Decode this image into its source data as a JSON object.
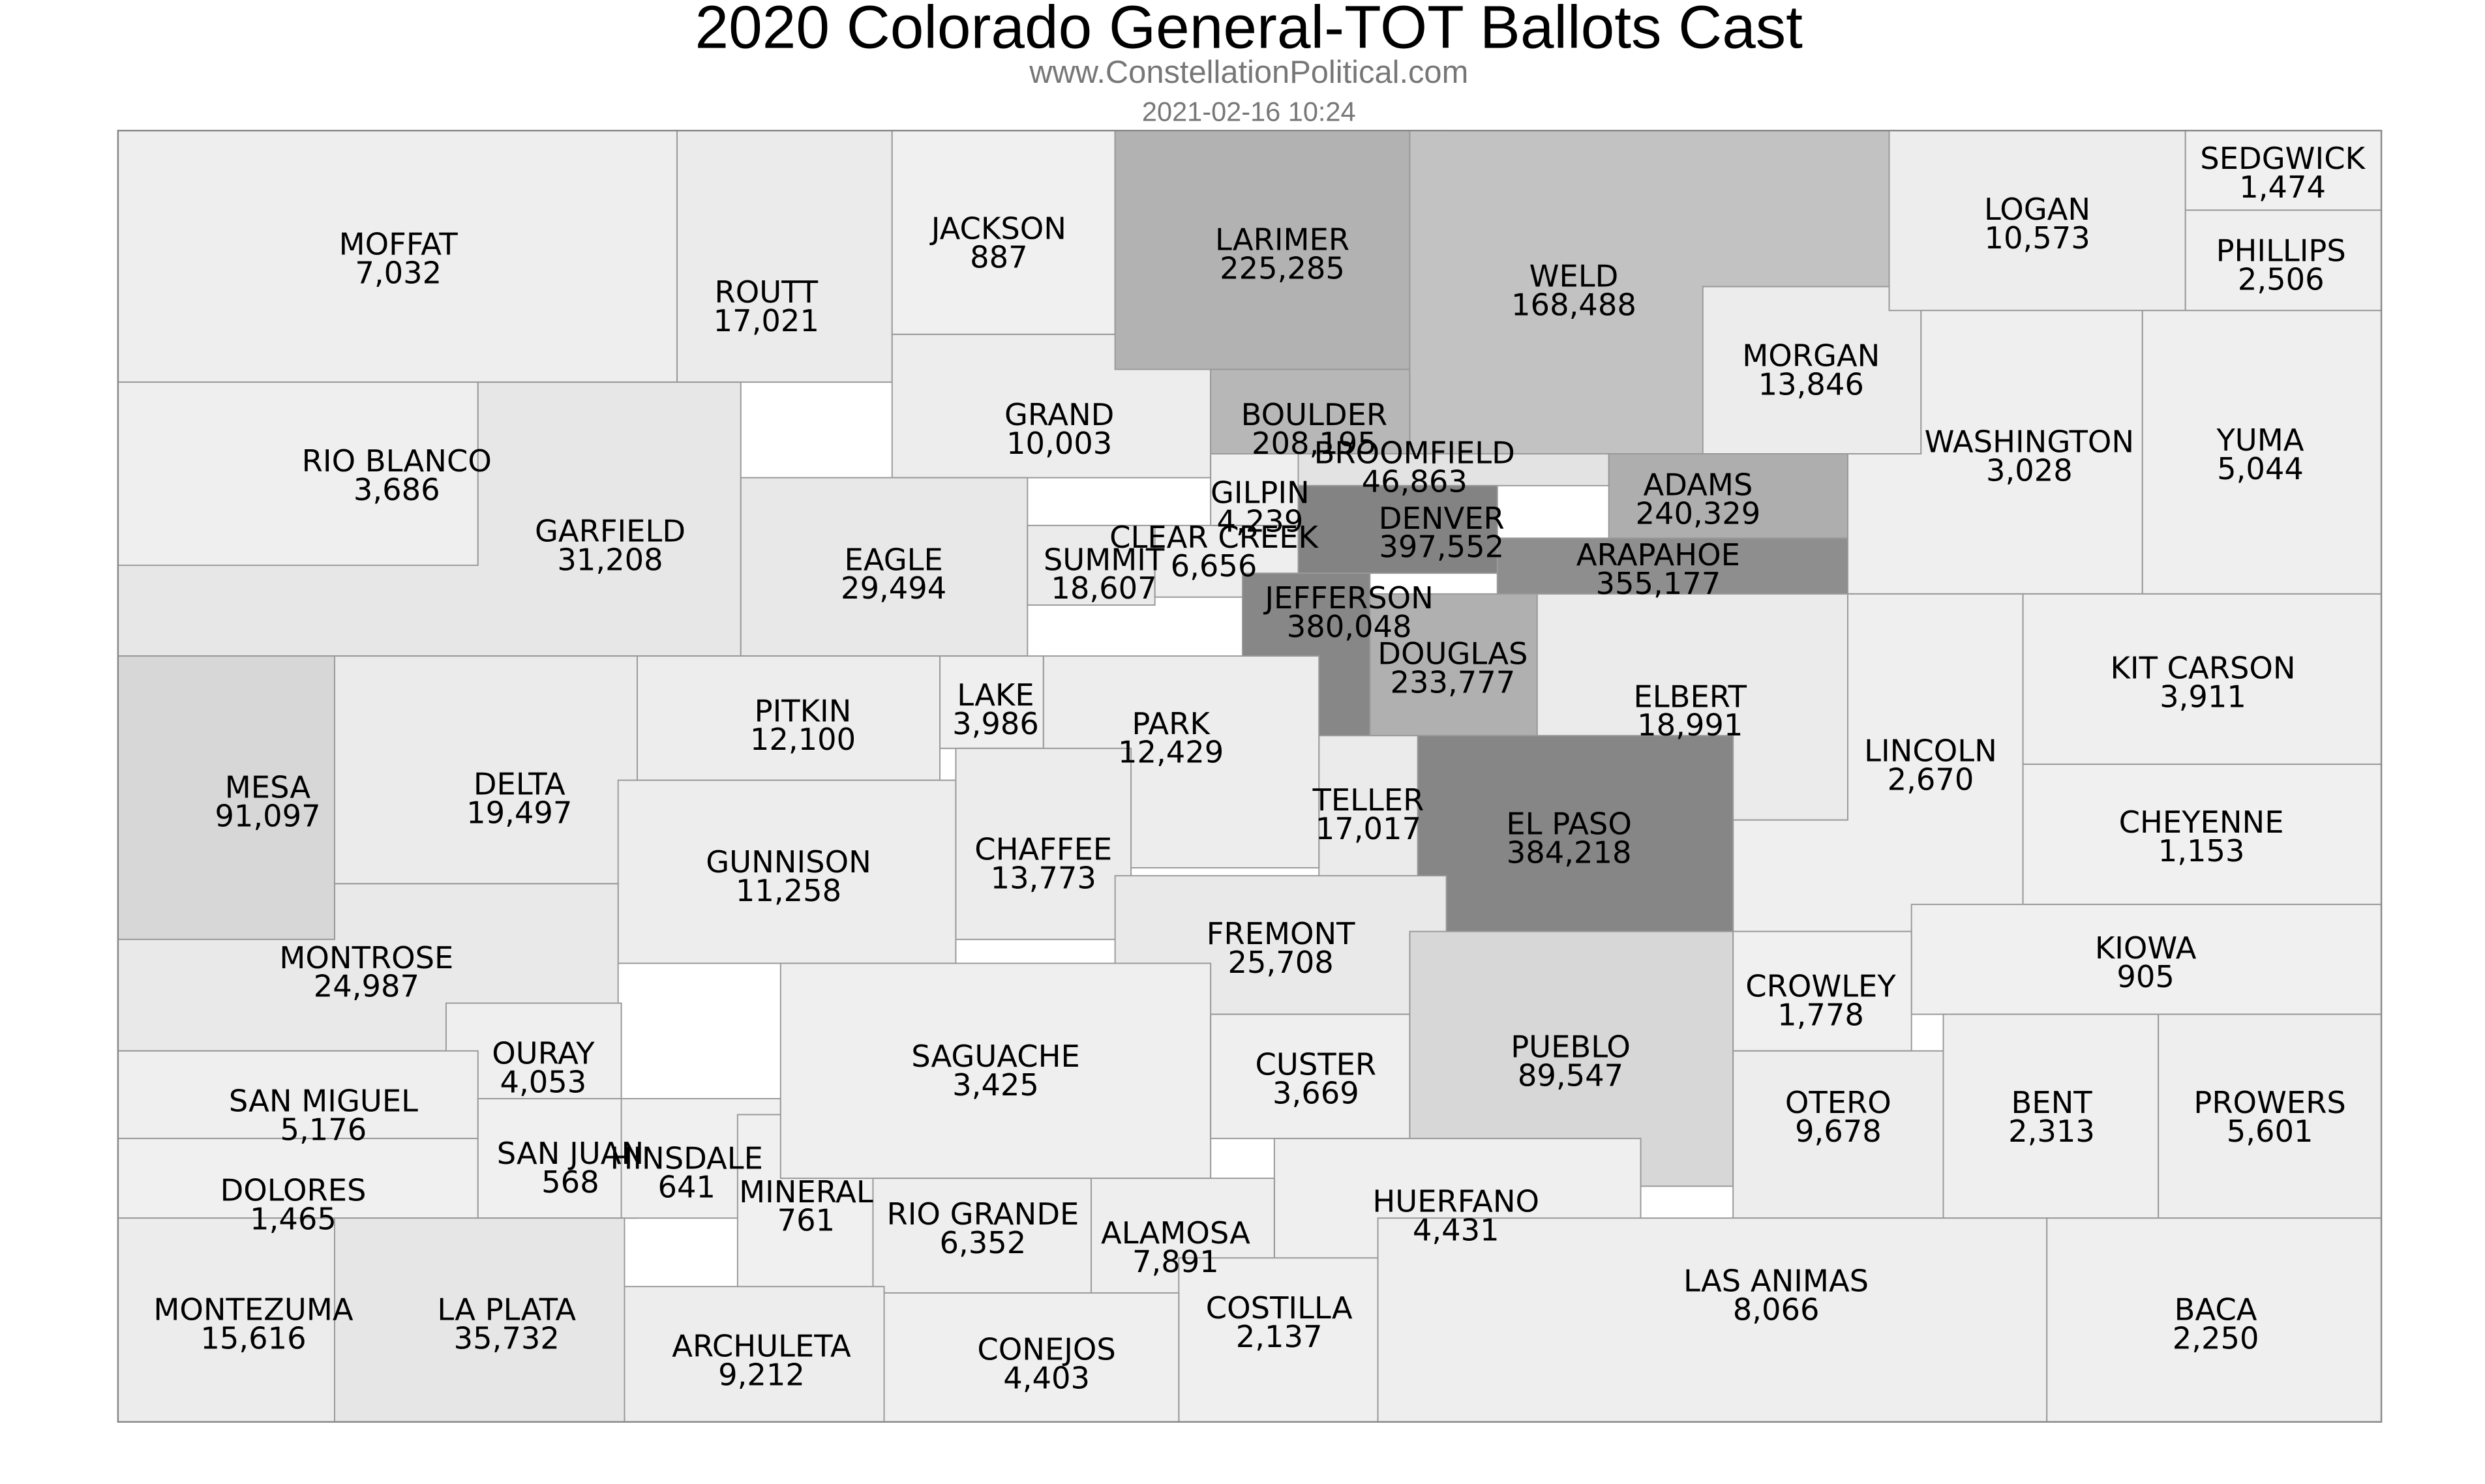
{
  "header": {
    "title": "2020 Colorado General-TOT Ballots Cast",
    "source": "www.ConstellationPolitical.com",
    "timestamp": "2021-02-16 10:24"
  },
  "counties": [
    {
      "name": "MOFFAT",
      "value": 7032,
      "label": "7,032"
    },
    {
      "name": "ROUTT",
      "value": 17021,
      "label": "17,021"
    },
    {
      "name": "JACKSON",
      "value": 887,
      "label": "887"
    },
    {
      "name": "GRAND",
      "value": 10003,
      "label": "10,003"
    },
    {
      "name": "LARIMER",
      "value": 225285,
      "label": "225,285"
    },
    {
      "name": "WELD",
      "value": 168488,
      "label": "168,488"
    },
    {
      "name": "MORGAN",
      "value": 13846,
      "label": "13,846"
    },
    {
      "name": "LOGAN",
      "value": 10573,
      "label": "10,573"
    },
    {
      "name": "SEDGWICK",
      "value": 1474,
      "label": "1,474"
    },
    {
      "name": "PHILLIPS",
      "value": 2506,
      "label": "2,506"
    },
    {
      "name": "WASHINGTON",
      "value": 3028,
      "label": "3,028"
    },
    {
      "name": "YUMA",
      "value": 5044,
      "label": "5,044"
    },
    {
      "name": "RIO BLANCO",
      "value": 3686,
      "label": "3,686"
    },
    {
      "name": "GARFIELD",
      "value": 31208,
      "label": "31,208"
    },
    {
      "name": "EAGLE",
      "value": 29494,
      "label": "29,494"
    },
    {
      "name": "SUMMIT",
      "value": 18607,
      "label": "18,607"
    },
    {
      "name": "CLEAR CREEK",
      "value": 6656,
      "label": "6,656"
    },
    {
      "name": "GILPIN",
      "value": 4239,
      "label": "4,239"
    },
    {
      "name": "BOULDER",
      "value": 208195,
      "label": "208,195"
    },
    {
      "name": "BROOMFIELD",
      "value": 46863,
      "label": "46,863"
    },
    {
      "name": "ADAMS",
      "value": 240329,
      "label": "240,329"
    },
    {
      "name": "DENVER",
      "value": 397552,
      "label": "397,552"
    },
    {
      "name": "ARAPAHOE",
      "value": 355177,
      "label": "355,177"
    },
    {
      "name": "JEFFERSON",
      "value": 380048,
      "label": "380,048"
    },
    {
      "name": "DOUGLAS",
      "value": 233777,
      "label": "233,777"
    },
    {
      "name": "ELBERT",
      "value": 18991,
      "label": "18,991"
    },
    {
      "name": "LINCOLN",
      "value": 2670,
      "label": "2,670"
    },
    {
      "name": "KIT CARSON",
      "value": 3911,
      "label": "3,911"
    },
    {
      "name": "CHEYENNE",
      "value": 1153,
      "label": "1,153"
    },
    {
      "name": "KIOWA",
      "value": 905,
      "label": "905"
    },
    {
      "name": "EL PASO",
      "value": 384218,
      "label": "384,218"
    },
    {
      "name": "TELLER",
      "value": 17017,
      "label": "17,017"
    },
    {
      "name": "PARK",
      "value": 12429,
      "label": "12,429"
    },
    {
      "name": "LAKE",
      "value": 3986,
      "label": "3,986"
    },
    {
      "name": "PITKIN",
      "value": 12100,
      "label": "12,100"
    },
    {
      "name": "MESA",
      "value": 91097,
      "label": "91,097"
    },
    {
      "name": "DELTA",
      "value": 19497,
      "label": "19,497"
    },
    {
      "name": "GUNNISON",
      "value": 11258,
      "label": "11,258"
    },
    {
      "name": "CHAFFEE",
      "value": 13773,
      "label": "13,773"
    },
    {
      "name": "FREMONT",
      "value": 25708,
      "label": "25,708"
    },
    {
      "name": "MONTROSE",
      "value": 24987,
      "label": "24,987"
    },
    {
      "name": "OURAY",
      "value": 4053,
      "label": "4,053"
    },
    {
      "name": "SAN MIGUEL",
      "value": 5176,
      "label": "5,176"
    },
    {
      "name": "DOLORES",
      "value": 1465,
      "label": "1,465"
    },
    {
      "name": "SAN JUAN",
      "value": 568,
      "label": "568"
    },
    {
      "name": "HINSDALE",
      "value": 641,
      "label": "641"
    },
    {
      "name": "MINERAL",
      "value": 761,
      "label": "761"
    },
    {
      "name": "SAGUACHE",
      "value": 3425,
      "label": "3,425"
    },
    {
      "name": "CUSTER",
      "value": 3669,
      "label": "3,669"
    },
    {
      "name": "PUEBLO",
      "value": 89547,
      "label": "89,547"
    },
    {
      "name": "CROWLEY",
      "value": 1778,
      "label": "1,778"
    },
    {
      "name": "OTERO",
      "value": 9678,
      "label": "9,678"
    },
    {
      "name": "BENT",
      "value": 2313,
      "label": "2,313"
    },
    {
      "name": "PROWERS",
      "value": 5601,
      "label": "5,601"
    },
    {
      "name": "HUERFANO",
      "value": 4431,
      "label": "4,431"
    },
    {
      "name": "RIO GRANDE",
      "value": 6352,
      "label": "6,352"
    },
    {
      "name": "ALAMOSA",
      "value": 7891,
      "label": "7,891"
    },
    {
      "name": "COSTILLA",
      "value": 2137,
      "label": "2,137"
    },
    {
      "name": "CONEJOS",
      "value": 4403,
      "label": "4,403"
    },
    {
      "name": "ARCHULETA",
      "value": 9212,
      "label": "9,212"
    },
    {
      "name": "LA PLATA",
      "value": 35732,
      "label": "35,732"
    },
    {
      "name": "MONTEZUMA",
      "value": 15616,
      "label": "15,616"
    },
    {
      "name": "LAS ANIMAS",
      "value": 8066,
      "label": "8,066"
    },
    {
      "name": "BACA",
      "value": 2250,
      "label": "2,250"
    }
  ]
}
